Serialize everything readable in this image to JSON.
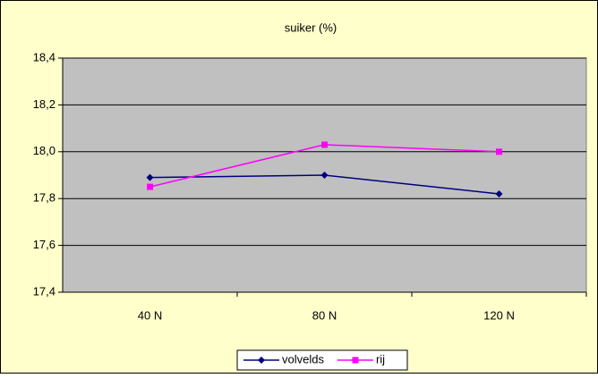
{
  "chart_data": {
    "type": "line",
    "title": "suiker (%)",
    "categories": [
      "40 N",
      "80 N",
      "120 N"
    ],
    "series": [
      {
        "name": "volvelds",
        "color": "#000080",
        "marker": "diamond",
        "values": [
          17.89,
          17.9,
          17.82
        ]
      },
      {
        "name": "rij",
        "color": "#ff00ff",
        "marker": "square",
        "values": [
          17.85,
          18.03,
          18.0
        ]
      }
    ],
    "ylim": [
      17.4,
      18.4
    ],
    "yticks": [
      {
        "value": 17.4,
        "label": "17,4"
      },
      {
        "value": 17.6,
        "label": "17,6"
      },
      {
        "value": 17.8,
        "label": "17,8"
      },
      {
        "value": 18.0,
        "label": "18,0"
      },
      {
        "value": 18.2,
        "label": "18,2"
      },
      {
        "value": 18.4,
        "label": "18,4"
      }
    ],
    "grid": true,
    "legend": "bottom"
  }
}
